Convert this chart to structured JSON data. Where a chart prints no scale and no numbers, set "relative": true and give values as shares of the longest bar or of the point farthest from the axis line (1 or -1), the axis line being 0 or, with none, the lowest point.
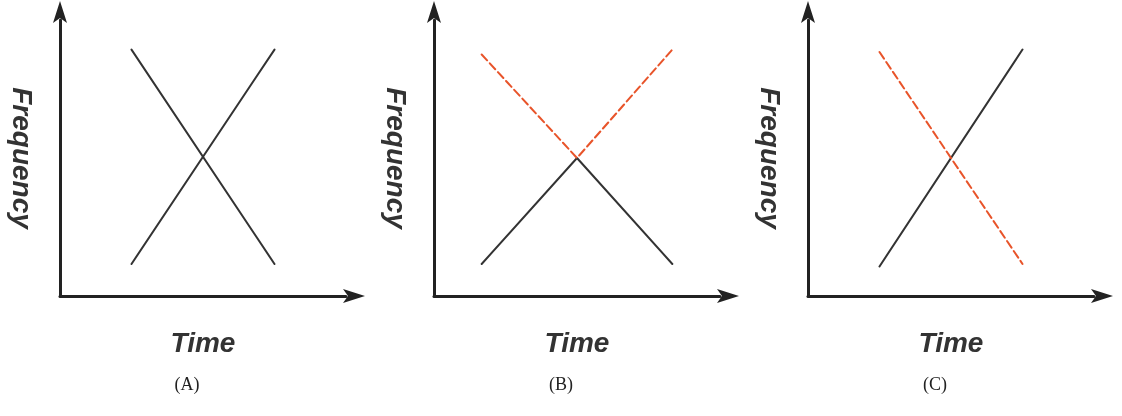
{
  "chart_data": [
    {
      "type": "line",
      "relative": true,
      "xlabel": "Time",
      "ylabel": "Frequency",
      "categories": [
        null,
        null
      ],
      "grid": false,
      "marker": "none",
      "annotations": [
        "(A)"
      ],
      "series": [
        {
          "color": "#333333",
          "line_style": "solid",
          "values": [
            0.13,
            1
          ]
        },
        {
          "color": "#333333",
          "line_style": "solid",
          "values": [
            1,
            0.13
          ]
        }
      ]
    },
    {
      "type": "line",
      "relative": true,
      "xlabel": "Time",
      "ylabel": "Frequency",
      "categories": [
        null,
        null,
        null
      ],
      "grid": false,
      "marker": "none",
      "annotations": [
        "(B)"
      ],
      "series": [
        {
          "color": "#333333",
          "line_style": "solid",
          "values": [
            0.13,
            0.56,
            0.13
          ]
        },
        {
          "color": "#e8542a",
          "line_style": "dashed",
          "values": [
            0.98,
            0.56,
            1
          ]
        }
      ]
    },
    {
      "type": "line",
      "relative": true,
      "xlabel": "Time",
      "ylabel": "Frequency",
      "categories": [
        null,
        null
      ],
      "grid": false,
      "marker": "none",
      "annotations": [
        "(C)"
      ],
      "series": [
        {
          "color": "#333333",
          "line_style": "solid",
          "values": [
            0.12,
            1
          ]
        },
        {
          "color": "#e8542a",
          "line_style": "dashed",
          "values": [
            0.99,
            0.13
          ]
        }
      ]
    }
  ]
}
